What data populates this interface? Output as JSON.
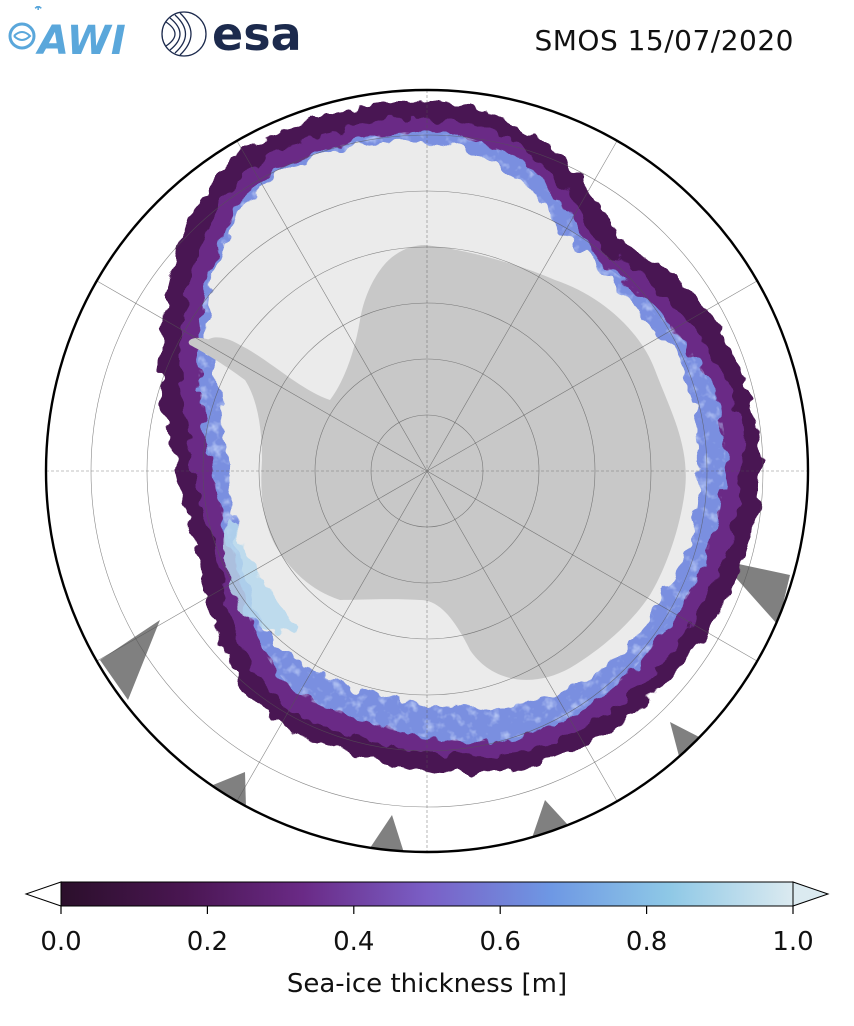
{
  "header": {
    "title": "SMOS 15/07/2020",
    "logos": [
      {
        "name": "awi-logo",
        "text": "AWI",
        "color": "#5aa7db"
      },
      {
        "name": "esa-logo",
        "text": "esa",
        "color": "#1c2a4d"
      }
    ]
  },
  "map": {
    "projection": "south-polar-stereographic",
    "land_color": "#c8c8c8",
    "thick_ice_color": "#ebebeb",
    "no_data_color": "#808080",
    "ocean_color": "#ffffff",
    "graticule": true
  },
  "colorbar": {
    "label": "Sea-ice thickness [m]",
    "ticks": [
      "0.0",
      "0.2",
      "0.4",
      "0.6",
      "0.8",
      "1.0"
    ],
    "min": 0.0,
    "max": 1.0,
    "colormap": [
      "#2b0f2b",
      "#4a1652",
      "#6a2a86",
      "#7a5fc6",
      "#6e98e4",
      "#8ec8e6",
      "#dbeaf0"
    ],
    "extend": "both"
  }
}
